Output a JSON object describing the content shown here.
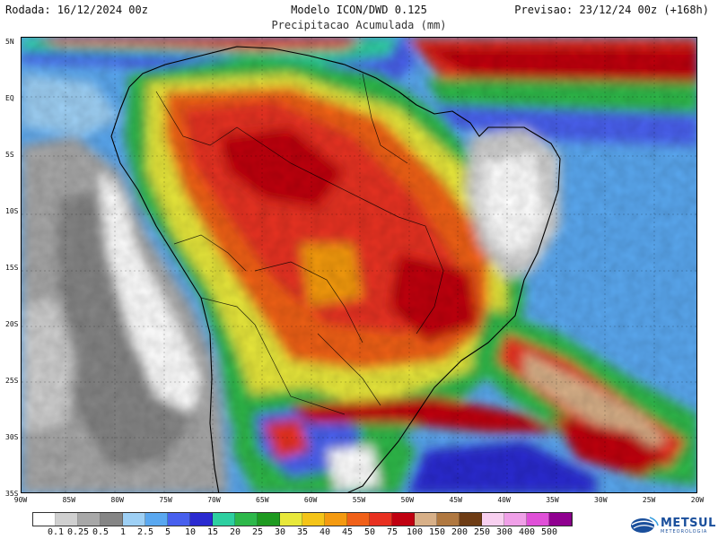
{
  "header": {
    "run": "Rodada: 16/12/2024 00z",
    "model": "Modelo ICON/DWD 0.125",
    "forecast": "Previsao: 23/12/24 00z (+168h)",
    "subtitle": "Precipitacao Acumulada (mm)"
  },
  "map": {
    "lat_labels": [
      "5N",
      "EQ",
      "5S",
      "10S",
      "15S",
      "20S",
      "25S",
      "30S",
      "35S"
    ],
    "lon_labels": [
      "90W",
      "85W",
      "80W",
      "75W",
      "70W",
      "65W",
      "60W",
      "55W",
      "50W",
      "45W",
      "40W",
      "35W",
      "30W",
      "25W",
      "20W"
    ]
  },
  "colorbar": {
    "labels": [
      "0.1",
      "0.25",
      "0.5",
      "1",
      "2.5",
      "5",
      "10",
      "15",
      "20",
      "25",
      "30",
      "35",
      "40",
      "45",
      "50",
      "75",
      "100",
      "150",
      "200",
      "250",
      "300",
      "400",
      "500"
    ],
    "colors": [
      "#ffffff",
      "#d0d0d0",
      "#a8a8a8",
      "#858585",
      "#9ed0f5",
      "#5aa8f0",
      "#4860ee",
      "#2a2ad0",
      "#2dcfa0",
      "#2db84a",
      "#1e9a20",
      "#e8e83a",
      "#f4c418",
      "#f49a10",
      "#f06018",
      "#e83020",
      "#c00010",
      "#d8b088",
      "#b07840",
      "#6e3c14",
      "#f8d0f0",
      "#f0a0e8",
      "#e050d8",
      "#900090"
    ]
  },
  "logo": {
    "name": "METSUL",
    "tagline": "METEOROLOGIA"
  }
}
